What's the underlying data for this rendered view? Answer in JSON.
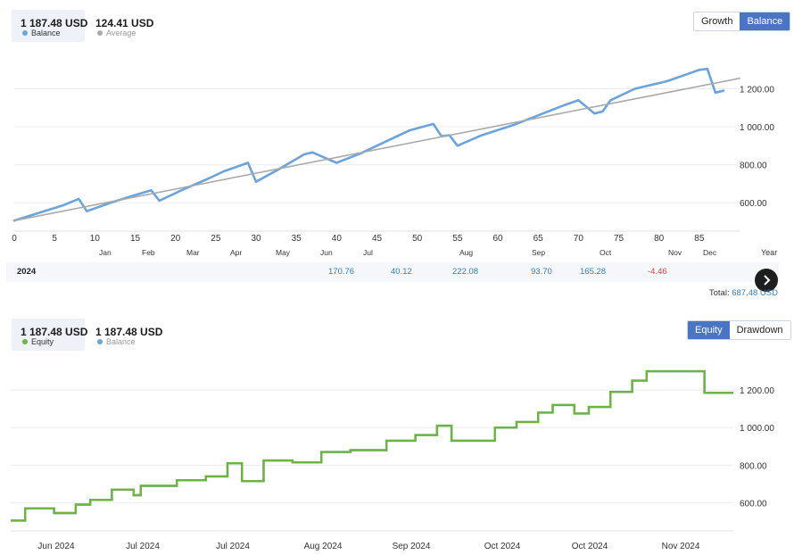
{
  "panel1": {
    "balance_box": {
      "value": "1 187.48 USD",
      "label": "Balance",
      "color": "#6aa3dd"
    },
    "average_box": {
      "value": "124.41 USD",
      "label": "Average",
      "color": "#aaaaaa"
    },
    "toggle": {
      "growth_label": "Growth",
      "balance_label": "Balance",
      "active": "Balance"
    },
    "year_row": {
      "year": "2024",
      "monthly": [
        "170.76",
        "40.12",
        "222.08",
        "93.70",
        "165.28",
        "-4.46"
      ],
      "header": "Year",
      "total_label": "Total:",
      "total_value": "687.48 USD"
    }
  },
  "panel2": {
    "equity_box": {
      "value": "1 187.48 USD",
      "label": "Equity",
      "color": "#6db33f"
    },
    "balance_box": {
      "value": "1 187.48 USD",
      "label": "Balance",
      "color": "#6aa3dd"
    },
    "toggle": {
      "equity_label": "Equity",
      "drawdown_label": "Drawdown",
      "active": "Equity"
    }
  },
  "chart_data": [
    {
      "type": "line",
      "series": [
        {
          "name": "Balance",
          "color": "#6aa3dd",
          "x": [
            0,
            3,
            6,
            8,
            9,
            12,
            15,
            17,
            18,
            21,
            24,
            26,
            29,
            30,
            33,
            36,
            37,
            40,
            43,
            46,
            49,
            52,
            53,
            54,
            55,
            58,
            62,
            65,
            68,
            70,
            72,
            73,
            74,
            77,
            81,
            85,
            86,
            87,
            88
          ],
          "y": [
            505,
            545,
            585,
            620,
            555,
            600,
            640,
            665,
            610,
            670,
            725,
            765,
            810,
            710,
            780,
            855,
            865,
            810,
            860,
            920,
            980,
            1015,
            950,
            955,
            900,
            955,
            1010,
            1060,
            1110,
            1140,
            1070,
            1080,
            1140,
            1200,
            1240,
            1300,
            1305,
            1180,
            1190
          ]
        },
        {
          "name": "Average",
          "color": "#aaaaaa",
          "x": [
            0,
            90
          ],
          "y": [
            505,
            1255
          ]
        }
      ],
      "xticks": [
        "0",
        "5",
        "10",
        "15",
        "20",
        "25",
        "30",
        "35",
        "40",
        "45",
        "50",
        "55",
        "60",
        "65",
        "70",
        "75",
        "80",
        "85"
      ],
      "month_labels": [
        "Jan",
        "Feb",
        "Mar",
        "Apr",
        "May",
        "Jun",
        "Jul",
        "Aug",
        "Sep",
        "Oct",
        "Nov",
        "Dec"
      ],
      "yticks": [
        "600.00",
        "800.00",
        "1 000.00",
        "1 200.00"
      ],
      "xlim": [
        0,
        90
      ],
      "ylim": [
        450,
        1400
      ]
    },
    {
      "type": "line",
      "series": [
        {
          "name": "Equity",
          "color": "#6db33f",
          "x": [
            0,
            2,
            6,
            9,
            11,
            14,
            17,
            18,
            23,
            25,
            27,
            30,
            32,
            35,
            39,
            43,
            47,
            52,
            56,
            59,
            61,
            67,
            70,
            73,
            75,
            78,
            80,
            83,
            86,
            88,
            92,
            96,
            100
          ],
          "y": [
            505,
            570,
            545,
            590,
            615,
            670,
            640,
            690,
            720,
            720,
            740,
            810,
            715,
            825,
            815,
            870,
            880,
            930,
            960,
            1010,
            930,
            1000,
            1030,
            1080,
            1120,
            1075,
            1110,
            1190,
            1250,
            1300,
            1300,
            1185,
            1185
          ]
        },
        {
          "name": "Balance",
          "color": "#6aa3dd",
          "x": [
            0,
            2,
            6,
            9,
            11,
            14,
            17,
            18,
            23,
            25,
            27,
            30,
            32,
            35,
            39,
            43,
            47,
            52,
            56,
            59,
            61,
            67,
            70,
            73,
            75,
            78,
            80,
            83,
            86,
            88,
            92,
            96,
            100
          ],
          "y": [
            505,
            570,
            545,
            590,
            615,
            670,
            640,
            690,
            720,
            720,
            740,
            810,
            715,
            825,
            815,
            870,
            880,
            930,
            960,
            1010,
            930,
            1000,
            1030,
            1080,
            1120,
            1075,
            1110,
            1190,
            1250,
            1300,
            1300,
            1185,
            1185
          ]
        }
      ],
      "xticks": [
        "Jun 2024",
        "Jul 2024",
        "Jul 2024",
        "Aug 2024",
        "Sep 2024",
        "Oct 2024",
        "Oct 2024",
        "Nov 2024"
      ],
      "yticks": [
        "600.00",
        "800.00",
        "1 000.00",
        "1 200.00"
      ],
      "xlim": [
        0,
        100
      ],
      "ylim": [
        450,
        1400
      ]
    }
  ]
}
